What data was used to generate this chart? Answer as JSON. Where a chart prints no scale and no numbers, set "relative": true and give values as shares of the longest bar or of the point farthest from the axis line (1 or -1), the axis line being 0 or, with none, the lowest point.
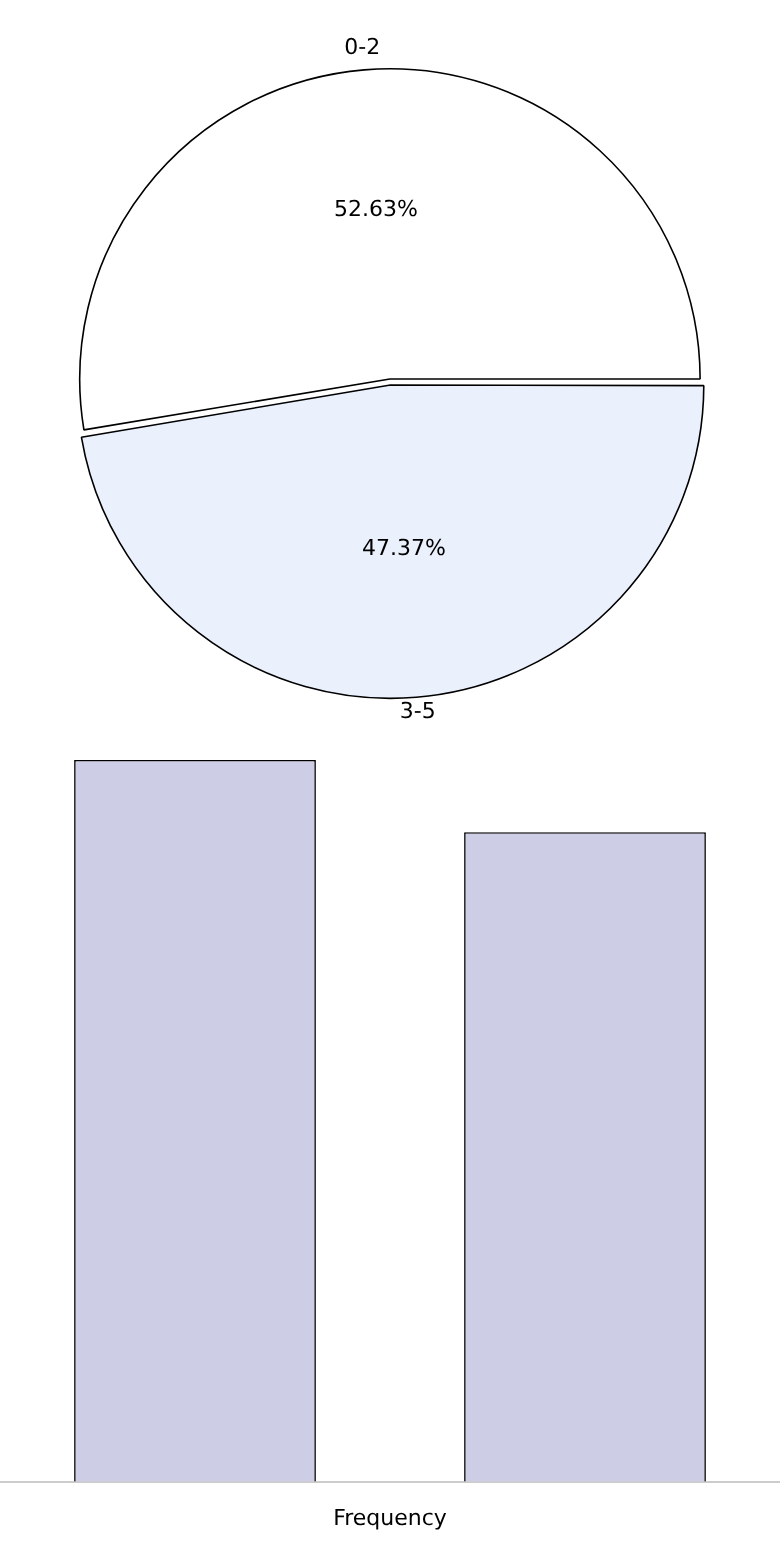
{
  "chart_data": [
    {
      "type": "pie",
      "categories": [
        "0-2",
        "3-5"
      ],
      "values": [
        52.63,
        47.37
      ],
      "colors": [
        "#ffffff",
        "#eaf0fc"
      ],
      "value_labels": [
        "52.63%",
        "47.37%"
      ]
    },
    {
      "type": "bar",
      "relative": true,
      "categories": [
        null,
        null
      ],
      "values": [
        1,
        0.9
      ],
      "color": "#cdcde6",
      "xlabel": "Frequency"
    }
  ]
}
